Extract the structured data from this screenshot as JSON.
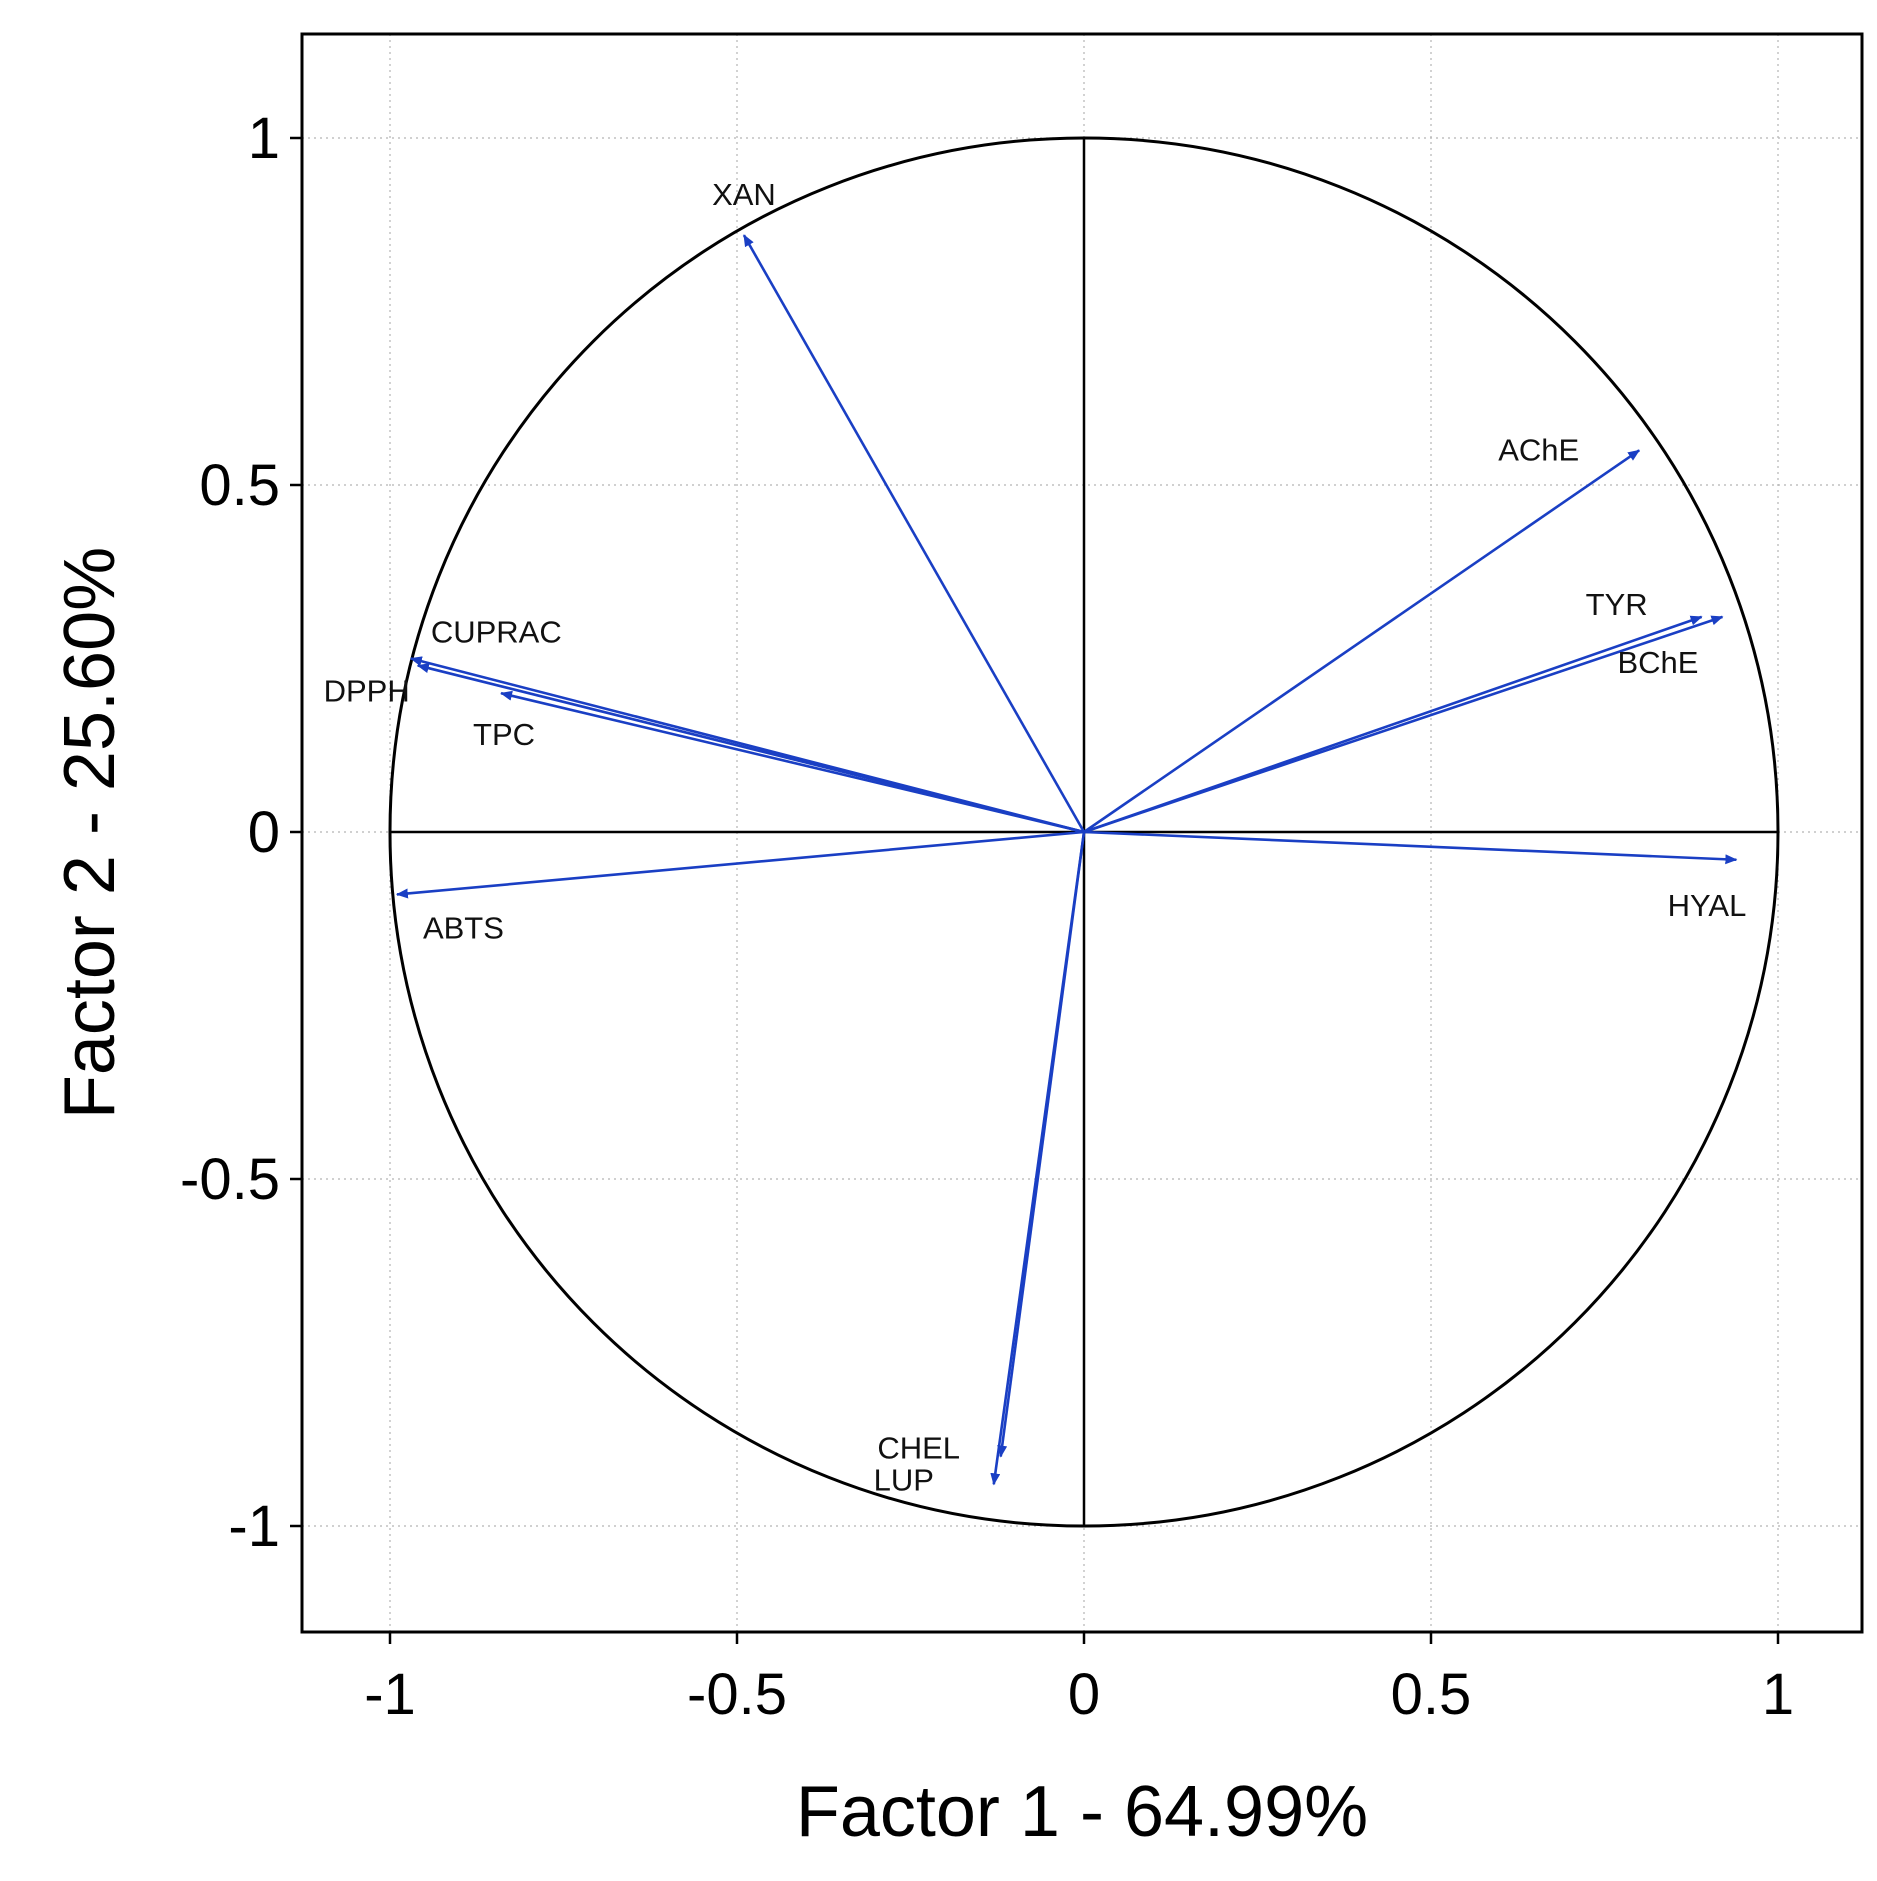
{
  "chart_data": {
    "type": "scatter",
    "subtype": "pca-correlation-circle",
    "title": "",
    "xlabel": "Factor 1 - 64.99%",
    "ylabel": "Factor 2 - 25.60%",
    "xlim": [
      -1.1,
      1.1
    ],
    "ylim": [
      -1.1,
      1.1
    ],
    "xticks": [
      -1,
      -0.5,
      0,
      0.5,
      1
    ],
    "yticks": [
      -1,
      -0.5,
      0,
      0.5,
      1
    ],
    "xtick_labels": [
      "-1",
      "-0.5",
      "0",
      "0.5",
      "1"
    ],
    "ytick_labels": [
      "-1",
      "-0.5",
      "0",
      "0.5",
      "1"
    ],
    "grid": true,
    "unit_circle": true,
    "arrow_color": "#1a3fc4",
    "variables": [
      {
        "name": "XAN",
        "x": -0.49,
        "y": 0.86
      },
      {
        "name": "AChE",
        "x": 0.8,
        "y": 0.55
      },
      {
        "name": "TYR",
        "x": 0.89,
        "y": 0.31
      },
      {
        "name": "BChE",
        "x": 0.92,
        "y": 0.31
      },
      {
        "name": "CUPRAC",
        "x": -0.97,
        "y": 0.25
      },
      {
        "name": "DPPH",
        "x": -0.96,
        "y": 0.24
      },
      {
        "name": "TPC",
        "x": -0.84,
        "y": 0.2
      },
      {
        "name": "HYAL",
        "x": 0.94,
        "y": -0.04
      },
      {
        "name": "ABTS",
        "x": -0.99,
        "y": -0.09
      },
      {
        "name": "CHEL",
        "x": -0.12,
        "y": -0.9
      },
      {
        "name": "LUP",
        "x": -0.13,
        "y": -0.94
      }
    ]
  }
}
